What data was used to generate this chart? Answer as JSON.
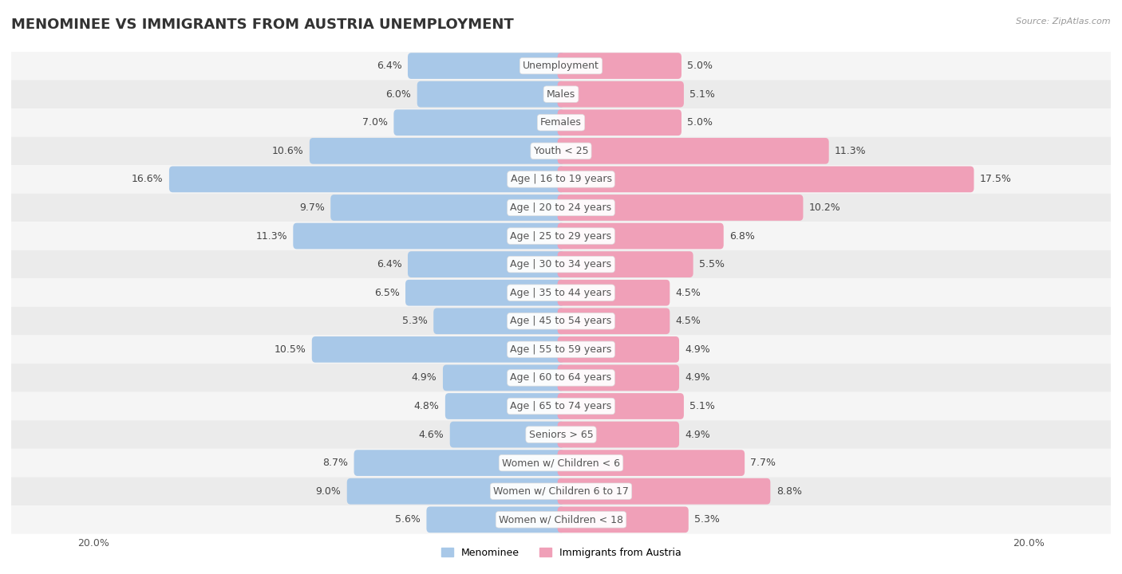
{
  "title": "MENOMINEE VS IMMIGRANTS FROM AUSTRIA UNEMPLOYMENT",
  "source": "Source: ZipAtlas.com",
  "categories": [
    "Unemployment",
    "Males",
    "Females",
    "Youth < 25",
    "Age | 16 to 19 years",
    "Age | 20 to 24 years",
    "Age | 25 to 29 years",
    "Age | 30 to 34 years",
    "Age | 35 to 44 years",
    "Age | 45 to 54 years",
    "Age | 55 to 59 years",
    "Age | 60 to 64 years",
    "Age | 65 to 74 years",
    "Seniors > 65",
    "Women w/ Children < 6",
    "Women w/ Children 6 to 17",
    "Women w/ Children < 18"
  ],
  "menominee": [
    6.4,
    6.0,
    7.0,
    10.6,
    16.6,
    9.7,
    11.3,
    6.4,
    6.5,
    5.3,
    10.5,
    4.9,
    4.8,
    4.6,
    8.7,
    9.0,
    5.6
  ],
  "austria": [
    5.0,
    5.1,
    5.0,
    11.3,
    17.5,
    10.2,
    6.8,
    5.5,
    4.5,
    4.5,
    4.9,
    4.9,
    5.1,
    4.9,
    7.7,
    8.8,
    5.3
  ],
  "menominee_color": "#a8c8e8",
  "austria_color": "#f0a0b8",
  "axis_max": 20.0,
  "row_bg_odd": "#ebebeb",
  "row_bg_even": "#f5f5f5",
  "legend_menominee": "Menominee",
  "legend_austria": "Immigrants from Austria",
  "title_fontsize": 13,
  "source_fontsize": 8,
  "label_fontsize": 9,
  "cat_fontsize": 9
}
